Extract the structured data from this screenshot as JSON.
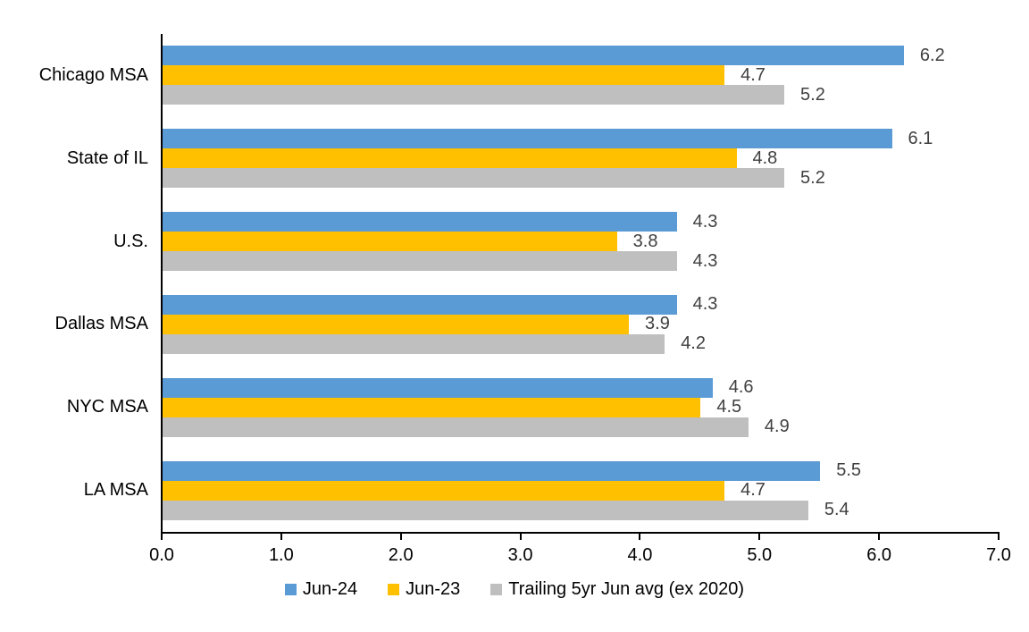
{
  "chart_data": {
    "type": "bar",
    "orientation": "horizontal",
    "title": "",
    "xlabel": "",
    "ylabel": "",
    "categories": [
      "Chicago MSA",
      "State of IL",
      "U.S.",
      "Dallas MSA",
      "NYC MSA",
      "LA MSA"
    ],
    "series": [
      {
        "name": "Jun-24",
        "color": "#5B9BD5",
        "values": [
          6.2,
          6.1,
          4.3,
          4.3,
          4.6,
          5.5
        ]
      },
      {
        "name": "Jun-23",
        "color": "#FFC000",
        "values": [
          4.7,
          4.8,
          3.8,
          3.9,
          4.5,
          4.7
        ]
      },
      {
        "name": "Trailing 5yr Jun avg (ex 2020)",
        "color": "#BFBFBF",
        "values": [
          5.2,
          5.2,
          4.3,
          4.2,
          4.9,
          5.4
        ]
      }
    ],
    "xlim": [
      0,
      7
    ],
    "x_ticks": [
      "0.0",
      "1.0",
      "2.0",
      "3.0",
      "4.0",
      "5.0",
      "6.0",
      "7.0"
    ],
    "grid": false,
    "legend_position": "bottom",
    "data_labels": true
  },
  "colors": {
    "axis": "#000000",
    "data_label": "#404040",
    "background": "#FFFFFF"
  }
}
